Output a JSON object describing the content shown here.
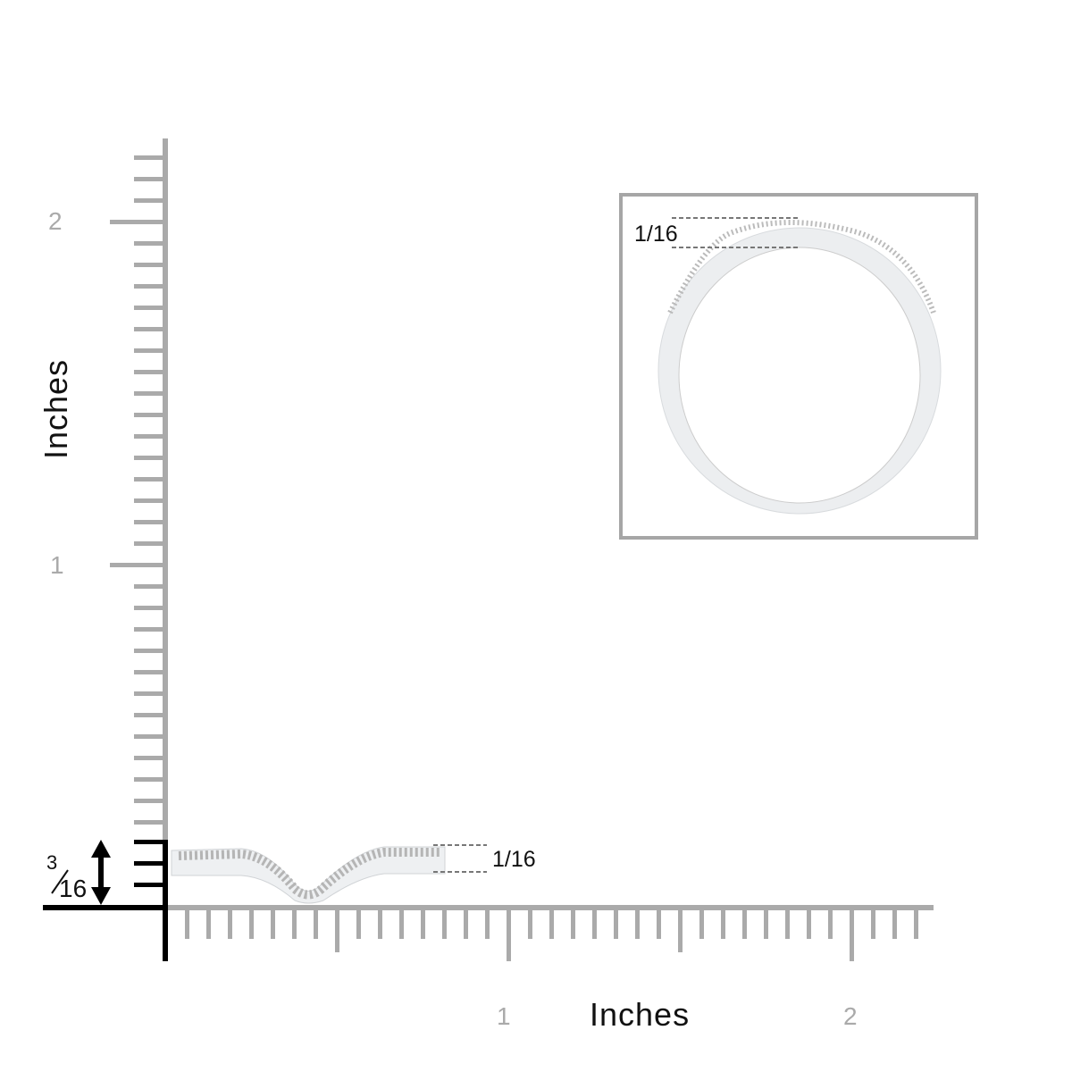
{
  "vertical_axis": {
    "title": "Inches",
    "tick_labels": [
      "2",
      "1"
    ]
  },
  "horizontal_axis": {
    "title": "Inches",
    "tick_labels": [
      "1",
      "2"
    ]
  },
  "band_height": {
    "numerator": "3",
    "denominator": "16"
  },
  "band_width_label": "1/16",
  "inset_width_label": "1/16",
  "colors": {
    "ruler": "#aaaaaa",
    "marker": "#000000",
    "inset_border": "#a6a6a6",
    "metal": "#e9ecef"
  }
}
